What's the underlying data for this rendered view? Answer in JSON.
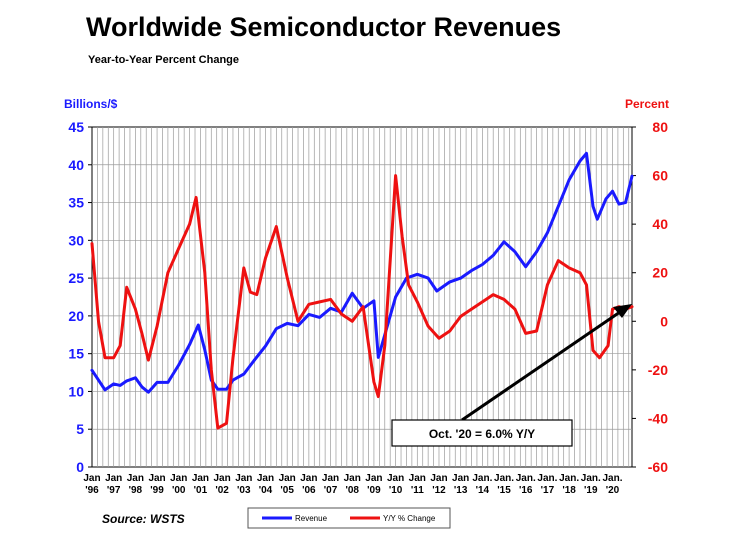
{
  "chart_data": {
    "type": "line",
    "title": "Worldwide Semiconductor Revenues",
    "subtitle": "Year-to-Year Percent Change",
    "source": "Source: WSTS",
    "y_left_label": "Billions/$",
    "y_right_label": "Percent",
    "y_left_range": [
      0,
      45
    ],
    "y_right_range": [
      -60,
      80
    ],
    "y_left_ticks": [
      "0",
      "5",
      "10",
      "15",
      "20",
      "25",
      "30",
      "35",
      "40",
      "45"
    ],
    "y_right_ticks": [
      "-60",
      "-40",
      "-20",
      "0",
      "20",
      "40",
      "60",
      "80"
    ],
    "x_range": [
      1996,
      2020.9
    ],
    "x_ticks": [
      {
        "top": "Jan",
        "bottom": "'96"
      },
      {
        "top": "Jan",
        "bottom": "'97"
      },
      {
        "top": "Jan",
        "bottom": "'98"
      },
      {
        "top": "Jan",
        "bottom": "'99"
      },
      {
        "top": "Jan",
        "bottom": "'00"
      },
      {
        "top": "Jan",
        "bottom": "'01"
      },
      {
        "top": "Jan",
        "bottom": "'02"
      },
      {
        "top": "Jan",
        "bottom": "'03"
      },
      {
        "top": "Jan",
        "bottom": "'04"
      },
      {
        "top": "Jan",
        "bottom": "'05"
      },
      {
        "top": "Jan",
        "bottom": "'06"
      },
      {
        "top": "Jan",
        "bottom": "'07"
      },
      {
        "top": "Jan",
        "bottom": "'08"
      },
      {
        "top": "Jan",
        "bottom": "'09"
      },
      {
        "top": "Jan",
        "bottom": "'10"
      },
      {
        "top": "Jan",
        "bottom": "'11"
      },
      {
        "top": "Jan",
        "bottom": "'12"
      },
      {
        "top": "Jan",
        "bottom": "'13"
      },
      {
        "top": "Jan.",
        "bottom": "'14"
      },
      {
        "top": "Jan.",
        "bottom": "'15"
      },
      {
        "top": "Jan.",
        "bottom": "'16"
      },
      {
        "top": "Jan.",
        "bottom": "'17"
      },
      {
        "top": "Jan.",
        "bottom": "'18"
      },
      {
        "top": "Jan.",
        "bottom": "'19"
      },
      {
        "top": "Jan.",
        "bottom": "'20"
      }
    ],
    "annotation": "Oct. '20 = 6.0% Y/Y",
    "grid": true,
    "legend_position": "bottom-center",
    "series": [
      {
        "name": "Revenue",
        "axis": "left",
        "color": "#1a1aff",
        "points": [
          [
            1996.0,
            12.8
          ],
          [
            1996.3,
            11.5
          ],
          [
            1996.6,
            10.2
          ],
          [
            1997.0,
            11.0
          ],
          [
            1997.3,
            10.8
          ],
          [
            1997.6,
            11.4
          ],
          [
            1998.0,
            11.8
          ],
          [
            1998.3,
            10.6
          ],
          [
            1998.6,
            9.9
          ],
          [
            1999.0,
            11.2
          ],
          [
            1999.5,
            11.2
          ],
          [
            2000.0,
            13.5
          ],
          [
            2000.5,
            16.2
          ],
          [
            2000.9,
            18.8
          ],
          [
            2001.2,
            15.5
          ],
          [
            2001.5,
            11.5
          ],
          [
            2001.8,
            10.3
          ],
          [
            2002.2,
            10.3
          ],
          [
            2002.5,
            11.5
          ],
          [
            2003.0,
            12.3
          ],
          [
            2003.5,
            14.2
          ],
          [
            2004.0,
            16.0
          ],
          [
            2004.5,
            18.3
          ],
          [
            2005.0,
            19.0
          ],
          [
            2005.5,
            18.7
          ],
          [
            2006.0,
            20.2
          ],
          [
            2006.5,
            19.8
          ],
          [
            2007.0,
            21.0
          ],
          [
            2007.5,
            20.5
          ],
          [
            2008.0,
            23.0
          ],
          [
            2008.5,
            21.0
          ],
          [
            2009.0,
            22.0
          ],
          [
            2009.2,
            14.5
          ],
          [
            2009.5,
            17.5
          ],
          [
            2010.0,
            22.5
          ],
          [
            2010.5,
            25.0
          ],
          [
            2011.0,
            25.5
          ],
          [
            2011.5,
            25.0
          ],
          [
            2011.9,
            23.3
          ],
          [
            2012.5,
            24.5
          ],
          [
            2013.0,
            25.0
          ],
          [
            2013.5,
            26.0
          ],
          [
            2014.0,
            26.8
          ],
          [
            2014.5,
            28.0
          ],
          [
            2015.0,
            29.8
          ],
          [
            2015.5,
            28.5
          ],
          [
            2016.0,
            26.5
          ],
          [
            2016.5,
            28.5
          ],
          [
            2017.0,
            31.0
          ],
          [
            2017.5,
            34.5
          ],
          [
            2018.0,
            38.0
          ],
          [
            2018.5,
            40.5
          ],
          [
            2018.8,
            41.5
          ],
          [
            2019.1,
            34.5
          ],
          [
            2019.3,
            32.8
          ],
          [
            2019.7,
            35.5
          ],
          [
            2020.0,
            36.5
          ],
          [
            2020.3,
            34.8
          ],
          [
            2020.6,
            35.0
          ],
          [
            2020.9,
            38.5
          ]
        ]
      },
      {
        "name": "Y/Y % Change",
        "axis": "right",
        "color": "#ee1111",
        "points": [
          [
            1996.0,
            32.0
          ],
          [
            1996.3,
            0.0
          ],
          [
            1996.6,
            -15.0
          ],
          [
            1997.0,
            -15.0
          ],
          [
            1997.3,
            -10.0
          ],
          [
            1997.6,
            14.0
          ],
          [
            1998.0,
            5.0
          ],
          [
            1998.3,
            -5.0
          ],
          [
            1998.6,
            -16.0
          ],
          [
            1999.0,
            -2.0
          ],
          [
            1999.5,
            20.0
          ],
          [
            2000.0,
            30.0
          ],
          [
            2000.5,
            40.0
          ],
          [
            2000.8,
            51.0
          ],
          [
            2001.2,
            20.0
          ],
          [
            2001.5,
            -20.0
          ],
          [
            2001.8,
            -44.0
          ],
          [
            2002.2,
            -42.0
          ],
          [
            2002.5,
            -15.0
          ],
          [
            2003.0,
            22.0
          ],
          [
            2003.3,
            12.0
          ],
          [
            2003.6,
            11.0
          ],
          [
            2004.0,
            26.0
          ],
          [
            2004.5,
            39.0
          ],
          [
            2005.0,
            18.0
          ],
          [
            2005.5,
            0.0
          ],
          [
            2006.0,
            7.0
          ],
          [
            2006.5,
            8.0
          ],
          [
            2007.0,
            9.0
          ],
          [
            2007.5,
            3.0
          ],
          [
            2008.0,
            0.0
          ],
          [
            2008.5,
            6.0
          ],
          [
            2009.0,
            -25.0
          ],
          [
            2009.2,
            -31.0
          ],
          [
            2009.5,
            -10.0
          ],
          [
            2010.0,
            60.0
          ],
          [
            2010.3,
            35.0
          ],
          [
            2010.6,
            15.0
          ],
          [
            2011.0,
            8.0
          ],
          [
            2011.5,
            -2.0
          ],
          [
            2012.0,
            -7.0
          ],
          [
            2012.5,
            -4.0
          ],
          [
            2013.0,
            2.0
          ],
          [
            2013.5,
            5.0
          ],
          [
            2014.0,
            8.0
          ],
          [
            2014.5,
            11.0
          ],
          [
            2015.0,
            9.0
          ],
          [
            2015.5,
            5.0
          ],
          [
            2016.0,
            -5.0
          ],
          [
            2016.5,
            -4.0
          ],
          [
            2017.0,
            15.0
          ],
          [
            2017.5,
            25.0
          ],
          [
            2018.0,
            22.0
          ],
          [
            2018.5,
            20.0
          ],
          [
            2018.8,
            15.0
          ],
          [
            2019.1,
            -12.0
          ],
          [
            2019.4,
            -15.0
          ],
          [
            2019.8,
            -10.0
          ],
          [
            2020.0,
            5.0
          ],
          [
            2020.3,
            6.0
          ],
          [
            2020.6,
            5.0
          ],
          [
            2020.9,
            6.0
          ]
        ]
      }
    ]
  }
}
